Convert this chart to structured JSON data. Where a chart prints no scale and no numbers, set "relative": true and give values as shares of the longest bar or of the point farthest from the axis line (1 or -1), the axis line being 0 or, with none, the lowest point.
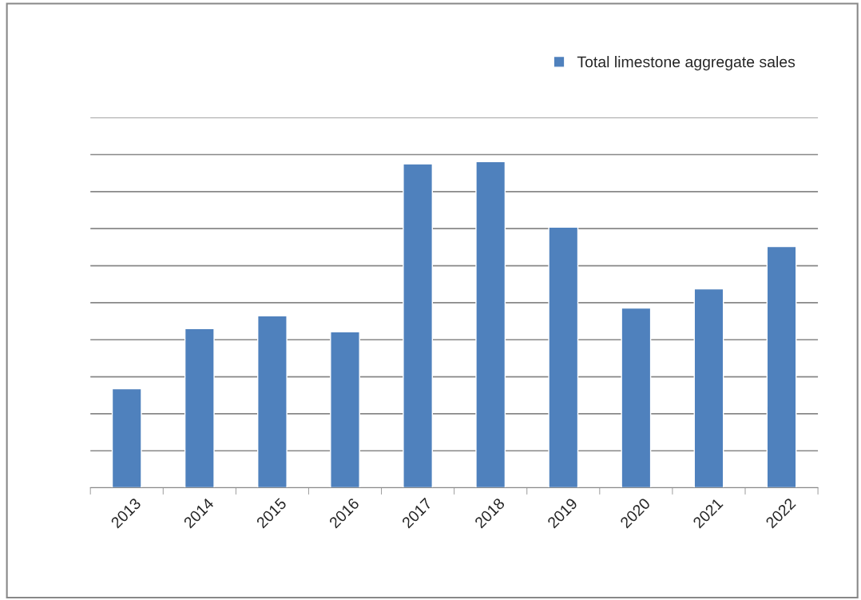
{
  "chart_data": {
    "type": "bar",
    "relative": true,
    "categories": [
      "2013",
      "2014",
      "2015",
      "2016",
      "2017",
      "2018",
      "2019",
      "2020",
      "2021",
      "2022"
    ],
    "series": [
      {
        "name": "Total limestone aggregate sales",
        "color": "#4f81bd",
        "values": [
          0.304,
          0.488,
          0.527,
          0.478,
          0.993,
          1,
          0.799,
          0.551,
          0.61,
          0.74
        ]
      }
    ],
    "grid": "y",
    "legend": "top right"
  }
}
